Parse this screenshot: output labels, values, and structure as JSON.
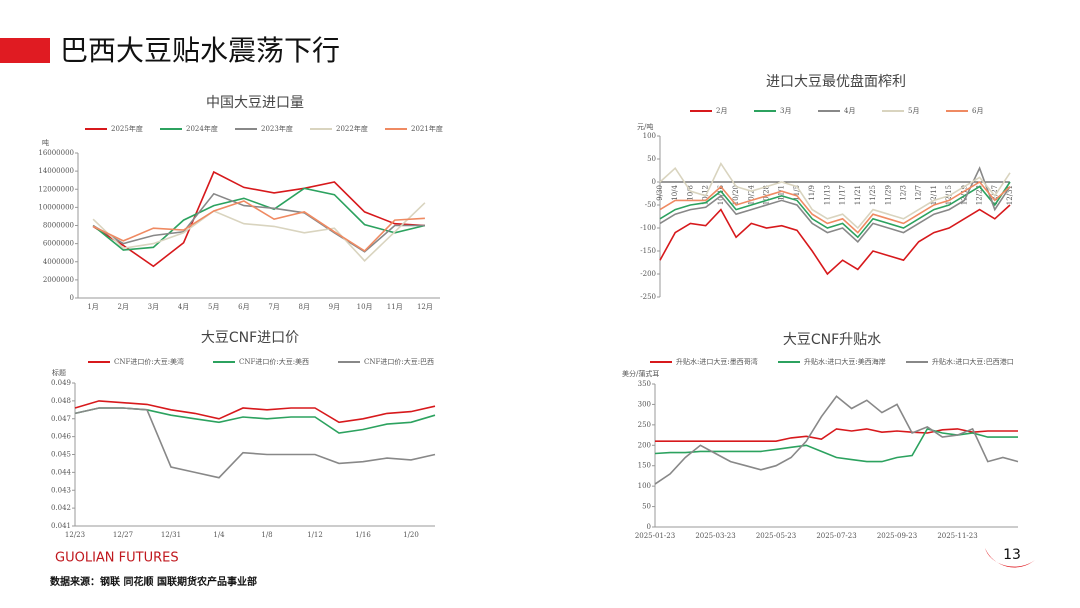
{
  "header": {
    "title": "巴西大豆贴水震荡下行"
  },
  "footer": {
    "brand": "GUOLIAN FUTURES",
    "source": "数据来源：钢联  同花顺  国联期货农产品事业部",
    "page_number": "13"
  },
  "chart_data": [
    {
      "type": "line",
      "title": "中国大豆进口量",
      "ylabel": "吨",
      "categories": [
        "1月",
        "2月",
        "3月",
        "4月",
        "5月",
        "6月",
        "7月",
        "8月",
        "9月",
        "10月",
        "11月",
        "12月"
      ],
      "ylim": [
        0,
        16000000
      ],
      "yticks": [
        0,
        2000000,
        4000000,
        6000000,
        8000000,
        10000000,
        12000000,
        14000000,
        16000000
      ],
      "series": [
        {
          "name": "2025年度",
          "color": "#d7191c",
          "values": [
            7900000,
            5800000,
            3500000,
            6100000,
            13900000,
            12200000,
            11600000,
            12100000,
            12800000,
            9500000,
            8200000,
            8000000
          ]
        },
        {
          "name": "2024年度",
          "color": "#2ca25f",
          "values": [
            8000000,
            5300000,
            5600000,
            8600000,
            10200000,
            11000000,
            9800000,
            12100000,
            11400000,
            8100000,
            7200000,
            8000000
          ]
        },
        {
          "name": "2023年度",
          "color": "#888888",
          "values": [
            8000000,
            6000000,
            6900000,
            7300000,
            11500000,
            10200000,
            9900000,
            9400000,
            7200000,
            5100000,
            8000000,
            8000000
          ]
        },
        {
          "name": "2022年度",
          "color": "#d9d4bf",
          "values": [
            8700000,
            5500000,
            6000000,
            7200000,
            9600000,
            8200000,
            7900000,
            7200000,
            7700000,
            4100000,
            7300000,
            10500000
          ]
        },
        {
          "name": "2021年度",
          "color": "#ef8a62",
          "values": [
            7900000,
            6300000,
            7700000,
            7500000,
            9600000,
            10700000,
            8700000,
            9500000,
            7300000,
            5200000,
            8600000,
            8800000
          ]
        }
      ]
    },
    {
      "type": "line",
      "title": "进口大豆最优盘面榨利",
      "ylabel": "元/吨",
      "categories": [
        "9/30",
        "10/4",
        "10/8",
        "10/12",
        "10/16",
        "10/20",
        "10/24",
        "10/28",
        "11/1",
        "11/5",
        "11/9",
        "11/13",
        "11/17",
        "11/21",
        "11/25",
        "11/29",
        "12/3",
        "12/7",
        "12/11",
        "12/15",
        "12/19",
        "12/23",
        "12/27",
        "12/31"
      ],
      "ylim": [
        -250,
        100
      ],
      "yticks": [
        -250,
        -200,
        -150,
        -100,
        -50,
        0,
        50,
        100
      ],
      "series": [
        {
          "name": "2月",
          "color": "#d7191c",
          "values": [
            -170,
            -110,
            -90,
            -95,
            -60,
            -120,
            -90,
            -100,
            -95,
            -105,
            -150,
            -200,
            -170,
            -190,
            -150,
            -160,
            -170,
            -130,
            -110,
            -100,
            -80,
            -60,
            -80,
            -50
          ]
        },
        {
          "name": "3月",
          "color": "#2ca25f",
          "values": [
            -80,
            -60,
            -50,
            -45,
            -20,
            -60,
            -50,
            -40,
            -30,
            -40,
            -80,
            -100,
            -90,
            -120,
            -80,
            -90,
            -100,
            -80,
            -60,
            -50,
            -30,
            -10,
            -50,
            0
          ]
        },
        {
          "name": "4月",
          "color": "#888888",
          "values": [
            -90,
            -70,
            -60,
            -55,
            -30,
            -70,
            -60,
            -50,
            -40,
            -50,
            -90,
            -110,
            -100,
            -130,
            -90,
            -100,
            -110,
            -90,
            -70,
            -60,
            -40,
            30,
            -60,
            -10
          ]
        },
        {
          "name": "5月",
          "color": "#d9d4bf",
          "values": [
            0,
            30,
            -20,
            -30,
            40,
            -10,
            -20,
            -10,
            0,
            -10,
            -60,
            -80,
            -70,
            -100,
            -60,
            -70,
            -80,
            -60,
            -40,
            -30,
            -10,
            10,
            -30,
            20
          ]
        },
        {
          "name": "6月",
          "color": "#ef8a62",
          "values": [
            -60,
            -40,
            -40,
            -40,
            -10,
            -50,
            -40,
            -30,
            -20,
            -30,
            -70,
            -90,
            -80,
            -110,
            -70,
            -80,
            -90,
            -70,
            -50,
            -40,
            -20,
            0,
            -40,
            -10
          ]
        }
      ]
    },
    {
      "type": "line",
      "title": "大豆CNF进口价",
      "ylabel": "标题",
      "categories": [
        "12/23",
        null,
        "12/27",
        null,
        "12/31",
        null,
        "1/4",
        null,
        "1/8",
        null,
        "1/12",
        null,
        "1/16",
        null,
        "1/20",
        null
      ],
      "ylim": [
        0.041,
        0.049
      ],
      "yticks": [
        0.041,
        0.042,
        0.043,
        0.044,
        0.045,
        0.046,
        0.047,
        0.048,
        0.049
      ],
      "series": [
        {
          "name": "CNF进口价:大豆:美湾",
          "color": "#d7191c",
          "values": [
            0.0476,
            0.048,
            0.0479,
            0.0478,
            0.0475,
            0.0473,
            0.047,
            0.0476,
            0.0475,
            0.0476,
            0.0476,
            0.0468,
            0.047,
            0.0473,
            0.0474,
            0.0477
          ]
        },
        {
          "name": "CNF进口价:大豆:美西",
          "color": "#2ca25f",
          "values": [
            0.0473,
            0.0476,
            0.0476,
            0.0475,
            0.0472,
            0.047,
            0.0468,
            0.0471,
            0.047,
            0.0471,
            0.0471,
            0.0462,
            0.0464,
            0.0467,
            0.0468,
            0.0472
          ]
        },
        {
          "name": "CNF进口价:大豆:巴西",
          "color": "#888888",
          "values": [
            0.0473,
            0.0476,
            0.0476,
            0.0475,
            0.0443,
            0.044,
            0.0437,
            0.0451,
            0.045,
            0.045,
            0.045,
            0.0445,
            0.0446,
            0.0448,
            0.0447,
            0.045
          ]
        }
      ]
    },
    {
      "type": "line",
      "title": "大豆CNF升贴水",
      "ylabel": "美分/蒲式耳",
      "categories": [
        "2025-01-23",
        null,
        null,
        null,
        "2025-03-23",
        null,
        null,
        null,
        "2025-05-23",
        null,
        null,
        null,
        "2025-07-23",
        null,
        null,
        null,
        "2025-09-23",
        null,
        null,
        null,
        "2025-11-23",
        null,
        null,
        null,
        null
      ],
      "ylim": [
        0,
        350
      ],
      "yticks": [
        0,
        50,
        100,
        150,
        200,
        250,
        300,
        350
      ],
      "series": [
        {
          "name": "升贴水:进口大豆:墨西哥湾",
          "color": "#d7191c",
          "values": [
            210,
            210,
            210,
            210,
            210,
            210,
            210,
            210,
            210,
            218,
            222,
            215,
            240,
            235,
            240,
            232,
            235,
            232,
            230,
            238,
            240,
            232,
            235,
            235,
            235
          ]
        },
        {
          "name": "升贴水:进口大豆:美西海岸",
          "color": "#2ca25f",
          "values": [
            180,
            182,
            182,
            185,
            185,
            185,
            185,
            185,
            190,
            195,
            200,
            185,
            170,
            165,
            160,
            160,
            170,
            175,
            240,
            230,
            225,
            230,
            220,
            220,
            220
          ]
        },
        {
          "name": "升贴水:进口大豆:巴西港口",
          "color": "#888888",
          "values": [
            105,
            130,
            170,
            200,
            180,
            160,
            150,
            140,
            150,
            170,
            210,
            270,
            320,
            290,
            310,
            280,
            300,
            230,
            245,
            220,
            225,
            240,
            160,
            170,
            160
          ]
        }
      ]
    }
  ]
}
